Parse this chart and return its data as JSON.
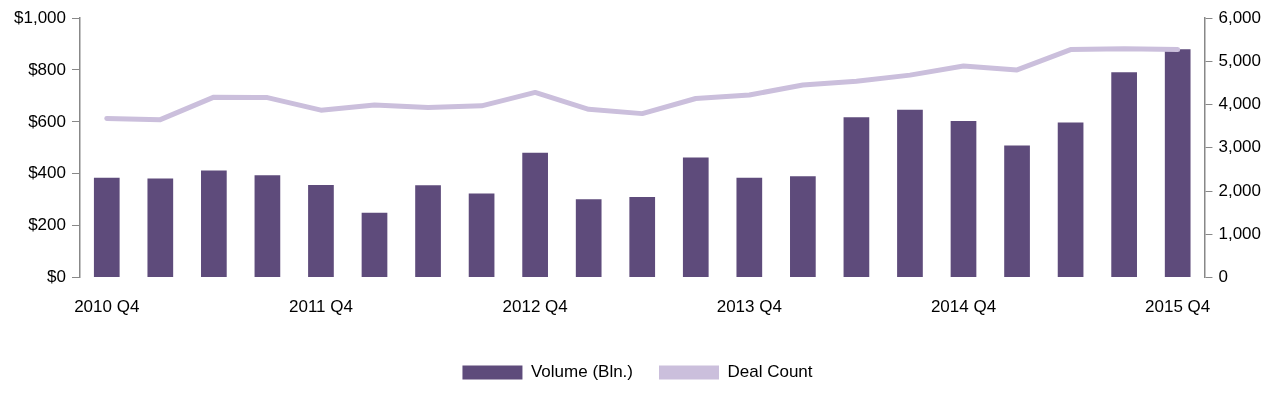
{
  "chart_data": {
    "type": "bar",
    "categories": [
      "2010 Q4",
      null,
      null,
      null,
      "2011 Q4",
      null,
      null,
      null,
      "2012 Q4",
      null,
      null,
      null,
      "2013 Q4",
      null,
      null,
      null,
      "2014 Q4",
      null,
      null,
      null,
      "2015 Q4"
    ],
    "series": [
      {
        "name": "Volume (Bln.)",
        "color": "#5e4b7b",
        "values": [
          385,
          382,
          413,
          394,
          357,
          250,
          356,
          324,
          481,
          302,
          310,
          463,
          385,
          390,
          618,
          647,
          603,
          509,
          597,
          791,
          880
        ]
      },
      {
        "name": "Deal Count",
        "type": "line",
        "axis": "y2",
        "color": "#cbbfdc",
        "values": [
          3680,
          3650,
          4170,
          4160,
          3870,
          3990,
          3930,
          3970,
          4280,
          3890,
          3790,
          4140,
          4220,
          4450,
          4540,
          4680,
          4890,
          4800,
          5270,
          5290,
          5270
        ]
      }
    ],
    "ylim": [
      0,
      1000
    ],
    "yticks": [
      {
        "value": 0,
        "label": "$0"
      },
      {
        "value": 200,
        "label": "$200"
      },
      {
        "value": 400,
        "label": "$400"
      },
      {
        "value": 600,
        "label": "$600"
      },
      {
        "value": 800,
        "label": "$800"
      },
      {
        "value": 1000,
        "label": "$1,000"
      }
    ],
    "y2lim": [
      0,
      6000
    ],
    "y2ticks": [
      {
        "value": 0,
        "label": "0"
      },
      {
        "value": 1000,
        "label": "1,000"
      },
      {
        "value": 2000,
        "label": "2,000"
      },
      {
        "value": 3000,
        "label": "3,000"
      },
      {
        "value": 4000,
        "label": "4,000"
      },
      {
        "value": 5000,
        "label": "5,000"
      },
      {
        "value": 6000,
        "label": "6,000"
      }
    ],
    "grid": false,
    "legend": "bottom",
    "marker": "none",
    "line_style": "solid"
  }
}
